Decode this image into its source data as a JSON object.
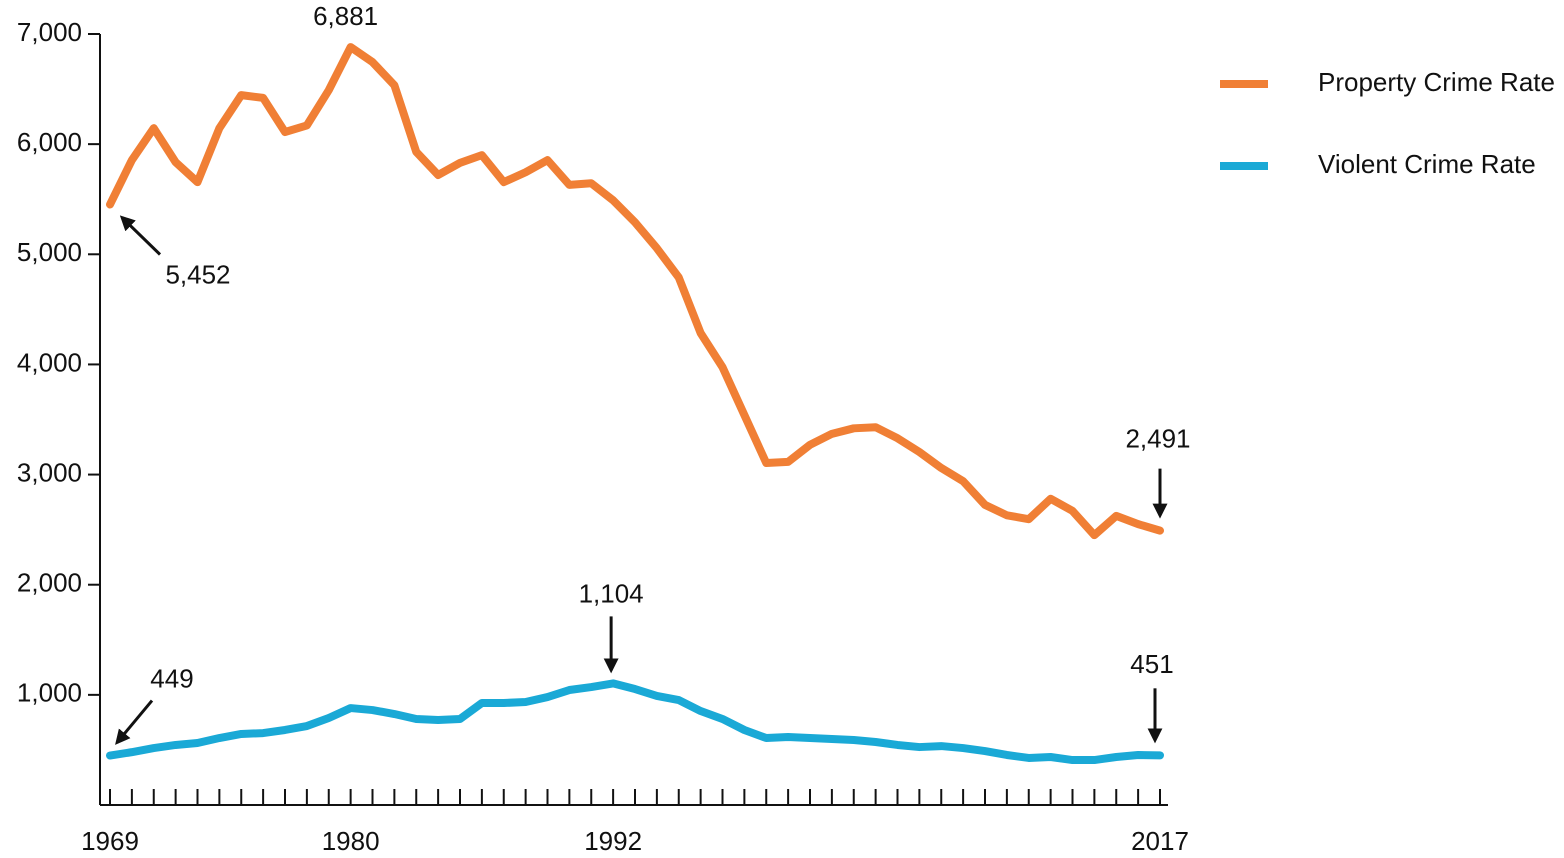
{
  "chart_data": {
    "type": "line",
    "x": [
      1969,
      1970,
      1971,
      1972,
      1973,
      1974,
      1975,
      1976,
      1977,
      1978,
      1979,
      1980,
      1981,
      1982,
      1983,
      1984,
      1985,
      1986,
      1987,
      1988,
      1989,
      1990,
      1991,
      1992,
      1993,
      1994,
      1995,
      1996,
      1997,
      1998,
      1999,
      2000,
      2001,
      2002,
      2003,
      2004,
      2005,
      2006,
      2007,
      2008,
      2009,
      2010,
      2011,
      2012,
      2013,
      2014,
      2015,
      2016,
      2017
    ],
    "series": [
      {
        "name": "Property Crime Rate",
        "color": "#f07f35",
        "values": [
          5452,
          5855,
          6145,
          5836,
          5655,
          6145,
          6445,
          6420,
          6110,
          6170,
          6490,
          6881,
          6745,
          6535,
          5930,
          5720,
          5830,
          5900,
          5655,
          5745,
          5855,
          5630,
          5645,
          5490,
          5290,
          5055,
          4790,
          4285,
          3975,
          3540,
          3105,
          3115,
          3270,
          3370,
          3420,
          3430,
          3330,
          3205,
          3060,
          2940,
          2725,
          2630,
          2595,
          2780,
          2670,
          2450,
          2625,
          2550,
          2491
        ],
        "value_labels": [
          "5,452",
          null,
          null,
          null,
          null,
          null,
          null,
          null,
          null,
          null,
          null,
          "6,881",
          null,
          null,
          null,
          null,
          null,
          null,
          null,
          null,
          null,
          null,
          null,
          null,
          null,
          null,
          null,
          null,
          null,
          null,
          null,
          null,
          null,
          null,
          null,
          null,
          null,
          null,
          null,
          null,
          null,
          null,
          null,
          null,
          null,
          null,
          null,
          null,
          "2,491"
        ]
      },
      {
        "name": "Violent Crime Rate",
        "color": "#1aa9d6",
        "values": [
          449,
          480,
          517,
          545,
          563,
          608,
          645,
          653,
          681,
          717,
          790,
          880,
          862,
          826,
          781,
          772,
          781,
          926,
          926,
          935,
          980,
          1044,
          1071,
          1104,
          1053,
          990,
          953,
          853,
          781,
          681,
          608,
          617,
          608,
          599,
          590,
          572,
          545,
          526,
          535,
          517,
          490,
          454,
          427,
          436,
          408,
          408,
          436,
          454,
          451
        ],
        "value_labels": [
          "449",
          null,
          null,
          null,
          null,
          null,
          null,
          null,
          null,
          null,
          null,
          null,
          null,
          null,
          null,
          null,
          null,
          null,
          null,
          null,
          null,
          null,
          null,
          "1,104",
          null,
          null,
          null,
          null,
          null,
          null,
          null,
          null,
          null,
          null,
          null,
          null,
          null,
          null,
          null,
          null,
          null,
          null,
          null,
          null,
          null,
          null,
          null,
          null,
          "451"
        ]
      }
    ],
    "xlim": [
      1969,
      2017
    ],
    "xticks": [
      1969,
      1980,
      1992,
      2017
    ],
    "ylim": [
      0,
      7000
    ],
    "yticks": [
      {
        "value": 1000,
        "label": "1,000"
      },
      {
        "value": 2000,
        "label": "2,000"
      },
      {
        "value": 3000,
        "label": "3,000"
      },
      {
        "value": 4000,
        "label": "4,000"
      },
      {
        "value": 5000,
        "label": "5,000"
      },
      {
        "value": 6000,
        "label": "6,000"
      },
      {
        "value": 7000,
        "label": "7,000"
      }
    ],
    "grid": false,
    "legend": "top-right"
  }
}
